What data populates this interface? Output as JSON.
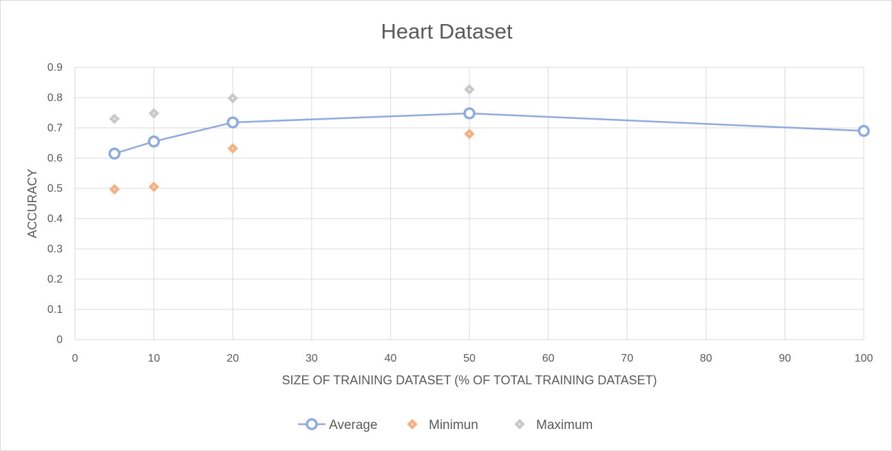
{
  "chart_data": {
    "type": "scatter",
    "title": "Heart Dataset",
    "xlabel": "SIZE OF TRAINING DATASET (% OF TOTAL TRAINING DATASET)",
    "ylabel": "ACCURACY",
    "xlim": [
      0,
      100
    ],
    "ylim": [
      0,
      0.9
    ],
    "x_ticks": [
      "0",
      "10",
      "20",
      "30",
      "40",
      "50",
      "60",
      "70",
      "80",
      "90",
      "100"
    ],
    "y_ticks": [
      "0",
      "0.1",
      "0.2",
      "0.3",
      "0.4",
      "0.5",
      "0.6",
      "0.7",
      "0.8",
      "0.9"
    ],
    "grid": true,
    "legend_position": "bottom",
    "series": [
      {
        "name": "Average",
        "style": "line-with-circle-markers",
        "color": "#8faadc",
        "points": [
          {
            "x": 5,
            "y": 0.615
          },
          {
            "x": 10,
            "y": 0.655
          },
          {
            "x": 20,
            "y": 0.718
          },
          {
            "x": 50,
            "y": 0.748
          },
          {
            "x": 100,
            "y": 0.69
          }
        ]
      },
      {
        "name": "Minimun",
        "style": "diamond-markers",
        "color": "#f4b183",
        "points": [
          {
            "x": 5,
            "y": 0.497
          },
          {
            "x": 10,
            "y": 0.505
          },
          {
            "x": 20,
            "y": 0.632
          },
          {
            "x": 50,
            "y": 0.68
          }
        ]
      },
      {
        "name": "Maximum",
        "style": "diamond-markers",
        "color": "#c9c9c9",
        "points": [
          {
            "x": 5,
            "y": 0.73
          },
          {
            "x": 10,
            "y": 0.748
          },
          {
            "x": 20,
            "y": 0.798
          },
          {
            "x": 50,
            "y": 0.827
          }
        ]
      }
    ]
  }
}
